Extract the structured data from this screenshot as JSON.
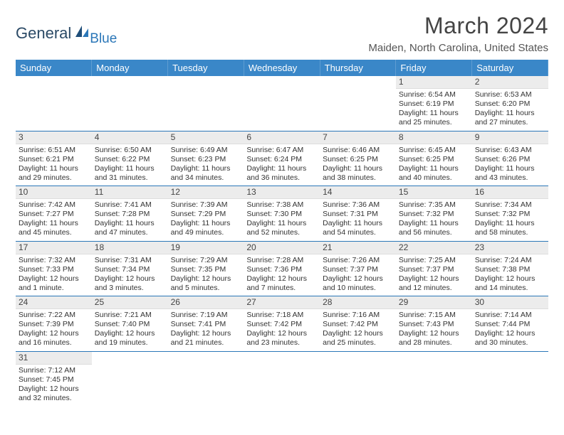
{
  "logo": {
    "word1": "General",
    "word2": "Blue"
  },
  "title": "March 2024",
  "location": "Maiden, North Carolina, United States",
  "colors": {
    "header_bg": "#3a87c8",
    "header_text": "#ffffff",
    "row_separator": "#2b77b8",
    "daynum_bg": "#ececec",
    "logo_primary": "#2b4a66",
    "logo_accent": "#2b77b8"
  },
  "typography": {
    "title_fontsize": 32,
    "location_fontsize": 15,
    "dayheader_fontsize": 13,
    "cell_fontsize": 10.5
  },
  "day_headers": [
    "Sunday",
    "Monday",
    "Tuesday",
    "Wednesday",
    "Thursday",
    "Friday",
    "Saturday"
  ],
  "weeks": [
    [
      null,
      null,
      null,
      null,
      null,
      {
        "n": "1",
        "sunrise": "Sunrise: 6:54 AM",
        "sunset": "Sunset: 6:19 PM",
        "daylight": "Daylight: 11 hours and 25 minutes."
      },
      {
        "n": "2",
        "sunrise": "Sunrise: 6:53 AM",
        "sunset": "Sunset: 6:20 PM",
        "daylight": "Daylight: 11 hours and 27 minutes."
      }
    ],
    [
      {
        "n": "3",
        "sunrise": "Sunrise: 6:51 AM",
        "sunset": "Sunset: 6:21 PM",
        "daylight": "Daylight: 11 hours and 29 minutes."
      },
      {
        "n": "4",
        "sunrise": "Sunrise: 6:50 AM",
        "sunset": "Sunset: 6:22 PM",
        "daylight": "Daylight: 11 hours and 31 minutes."
      },
      {
        "n": "5",
        "sunrise": "Sunrise: 6:49 AM",
        "sunset": "Sunset: 6:23 PM",
        "daylight": "Daylight: 11 hours and 34 minutes."
      },
      {
        "n": "6",
        "sunrise": "Sunrise: 6:47 AM",
        "sunset": "Sunset: 6:24 PM",
        "daylight": "Daylight: 11 hours and 36 minutes."
      },
      {
        "n": "7",
        "sunrise": "Sunrise: 6:46 AM",
        "sunset": "Sunset: 6:25 PM",
        "daylight": "Daylight: 11 hours and 38 minutes."
      },
      {
        "n": "8",
        "sunrise": "Sunrise: 6:45 AM",
        "sunset": "Sunset: 6:25 PM",
        "daylight": "Daylight: 11 hours and 40 minutes."
      },
      {
        "n": "9",
        "sunrise": "Sunrise: 6:43 AM",
        "sunset": "Sunset: 6:26 PM",
        "daylight": "Daylight: 11 hours and 43 minutes."
      }
    ],
    [
      {
        "n": "10",
        "sunrise": "Sunrise: 7:42 AM",
        "sunset": "Sunset: 7:27 PM",
        "daylight": "Daylight: 11 hours and 45 minutes."
      },
      {
        "n": "11",
        "sunrise": "Sunrise: 7:41 AM",
        "sunset": "Sunset: 7:28 PM",
        "daylight": "Daylight: 11 hours and 47 minutes."
      },
      {
        "n": "12",
        "sunrise": "Sunrise: 7:39 AM",
        "sunset": "Sunset: 7:29 PM",
        "daylight": "Daylight: 11 hours and 49 minutes."
      },
      {
        "n": "13",
        "sunrise": "Sunrise: 7:38 AM",
        "sunset": "Sunset: 7:30 PM",
        "daylight": "Daylight: 11 hours and 52 minutes."
      },
      {
        "n": "14",
        "sunrise": "Sunrise: 7:36 AM",
        "sunset": "Sunset: 7:31 PM",
        "daylight": "Daylight: 11 hours and 54 minutes."
      },
      {
        "n": "15",
        "sunrise": "Sunrise: 7:35 AM",
        "sunset": "Sunset: 7:32 PM",
        "daylight": "Daylight: 11 hours and 56 minutes."
      },
      {
        "n": "16",
        "sunrise": "Sunrise: 7:34 AM",
        "sunset": "Sunset: 7:32 PM",
        "daylight": "Daylight: 11 hours and 58 minutes."
      }
    ],
    [
      {
        "n": "17",
        "sunrise": "Sunrise: 7:32 AM",
        "sunset": "Sunset: 7:33 PM",
        "daylight": "Daylight: 12 hours and 1 minute."
      },
      {
        "n": "18",
        "sunrise": "Sunrise: 7:31 AM",
        "sunset": "Sunset: 7:34 PM",
        "daylight": "Daylight: 12 hours and 3 minutes."
      },
      {
        "n": "19",
        "sunrise": "Sunrise: 7:29 AM",
        "sunset": "Sunset: 7:35 PM",
        "daylight": "Daylight: 12 hours and 5 minutes."
      },
      {
        "n": "20",
        "sunrise": "Sunrise: 7:28 AM",
        "sunset": "Sunset: 7:36 PM",
        "daylight": "Daylight: 12 hours and 7 minutes."
      },
      {
        "n": "21",
        "sunrise": "Sunrise: 7:26 AM",
        "sunset": "Sunset: 7:37 PM",
        "daylight": "Daylight: 12 hours and 10 minutes."
      },
      {
        "n": "22",
        "sunrise": "Sunrise: 7:25 AM",
        "sunset": "Sunset: 7:37 PM",
        "daylight": "Daylight: 12 hours and 12 minutes."
      },
      {
        "n": "23",
        "sunrise": "Sunrise: 7:24 AM",
        "sunset": "Sunset: 7:38 PM",
        "daylight": "Daylight: 12 hours and 14 minutes."
      }
    ],
    [
      {
        "n": "24",
        "sunrise": "Sunrise: 7:22 AM",
        "sunset": "Sunset: 7:39 PM",
        "daylight": "Daylight: 12 hours and 16 minutes."
      },
      {
        "n": "25",
        "sunrise": "Sunrise: 7:21 AM",
        "sunset": "Sunset: 7:40 PM",
        "daylight": "Daylight: 12 hours and 19 minutes."
      },
      {
        "n": "26",
        "sunrise": "Sunrise: 7:19 AM",
        "sunset": "Sunset: 7:41 PM",
        "daylight": "Daylight: 12 hours and 21 minutes."
      },
      {
        "n": "27",
        "sunrise": "Sunrise: 7:18 AM",
        "sunset": "Sunset: 7:42 PM",
        "daylight": "Daylight: 12 hours and 23 minutes."
      },
      {
        "n": "28",
        "sunrise": "Sunrise: 7:16 AM",
        "sunset": "Sunset: 7:42 PM",
        "daylight": "Daylight: 12 hours and 25 minutes."
      },
      {
        "n": "29",
        "sunrise": "Sunrise: 7:15 AM",
        "sunset": "Sunset: 7:43 PM",
        "daylight": "Daylight: 12 hours and 28 minutes."
      },
      {
        "n": "30",
        "sunrise": "Sunrise: 7:14 AM",
        "sunset": "Sunset: 7:44 PM",
        "daylight": "Daylight: 12 hours and 30 minutes."
      }
    ],
    [
      {
        "n": "31",
        "sunrise": "Sunrise: 7:12 AM",
        "sunset": "Sunset: 7:45 PM",
        "daylight": "Daylight: 12 hours and 32 minutes."
      },
      null,
      null,
      null,
      null,
      null,
      null
    ]
  ]
}
